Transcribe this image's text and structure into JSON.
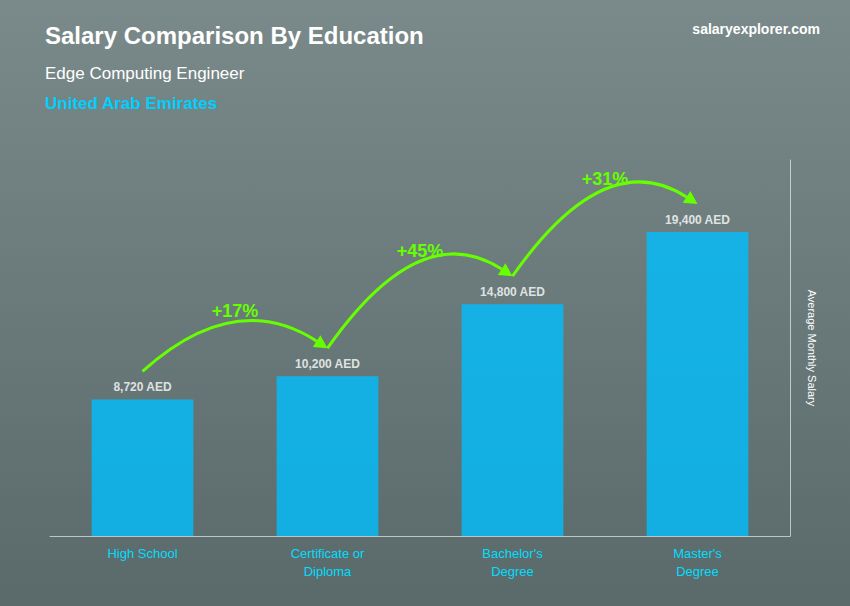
{
  "chart_data": {
    "type": "bar",
    "title": "Salary Comparison By Education",
    "subtitle": [
      "Edge Computing Engineer",
      "United Arab Emirates"
    ],
    "ylabel": "Average Monthly Salary",
    "categories": [
      "High School",
      "Certificate or\nDiploma",
      "Bachelor's\nDegree",
      "Master's\nDegree"
    ],
    "values": [
      8720,
      10200,
      14800,
      19400
    ],
    "value_labels": [
      "8,720 AED",
      "10,200 AED",
      "14,800 AED",
      "19,400 AED"
    ],
    "color": "#00BFFF",
    "ylim": [
      0,
      24000
    ],
    "grid": false,
    "tick_labels": "x",
    "data_labels": true,
    "annotations": [
      {
        "text": "+17%",
        "from": "High School",
        "to": "Certificate or\nDiploma",
        "color": "#66FF00"
      },
      {
        "text": "+45%",
        "from": "Certificate or\nDiploma",
        "to": "Bachelor's\nDegree",
        "color": "#66FF00"
      },
      {
        "text": "+31%",
        "from": "Bachelor's\nDegree",
        "to": "Master's\nDegree",
        "color": "#66FF00"
      },
      {
        "text": "salaryexplorer.com"
      }
    ]
  }
}
